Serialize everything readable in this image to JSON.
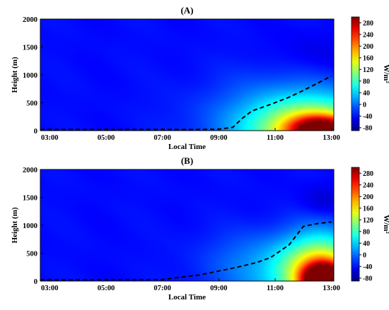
{
  "chart_data": [
    {
      "type": "heatmap",
      "title": "(A)",
      "xlabel": "Local Time",
      "ylabel": "Height (m)",
      "x_ticks": [
        "03:00",
        "05:00",
        "07:00",
        "09:00",
        "11:00",
        "13:00"
      ],
      "x_range": [
        "02:40",
        "13:05"
      ],
      "y_ticks": [
        "0",
        "500",
        "1000",
        "1500",
        "2000"
      ],
      "ylim": [
        0,
        2000
      ],
      "colorbar": {
        "label": "W/m²",
        "ticks": [
          "-80",
          "-40",
          "0",
          "40",
          "80",
          "120",
          "160",
          "200",
          "240",
          "280"
        ],
        "range": [
          -90,
          300
        ]
      },
      "boundary_layer_height": {
        "x": [
          "02:40",
          "08:00",
          "09:00",
          "09:30",
          "09:50",
          "10:10",
          "10:50",
          "11:30",
          "12:00",
          "12:30",
          "13:00"
        ],
        "y": [
          20,
          20,
          25,
          60,
          220,
          350,
          470,
          600,
          720,
          850,
          980
        ]
      },
      "field_features": [
        {
          "x": "12:40",
          "y": 0,
          "value": 200,
          "spread_x_hours": 0.8,
          "spread_y_m": 180
        },
        {
          "x": "12:20",
          "y": 0,
          "value": 100,
          "spread_x_hours": 1.5,
          "spread_y_m": 380
        },
        {
          "x": "11:50",
          "y": 150,
          "value": 35,
          "spread_x_hours": 2.2,
          "spread_y_m": 500
        },
        {
          "x": "12:30",
          "y": 1300,
          "value": -55,
          "spread_x_hours": 1.2,
          "spread_y_m": 300
        },
        {
          "x": "11:30",
          "y": 1000,
          "value": -30,
          "spread_x_hours": 1.5,
          "spread_y_m": 350
        }
      ]
    },
    {
      "type": "heatmap",
      "title": "(B)",
      "xlabel": "Local Time",
      "ylabel": "Height (m)",
      "x_ticks": [
        "03:00",
        "05:00",
        "07:00",
        "09:00",
        "11:00",
        "13:00"
      ],
      "x_range": [
        "02:40",
        "13:05"
      ],
      "y_ticks": [
        "0",
        "500",
        "1000",
        "1500",
        "2000"
      ],
      "ylim": [
        0,
        2000
      ],
      "colorbar": {
        "label": "W/m²",
        "ticks": [
          "-80",
          "-40",
          "0",
          "40",
          "80",
          "120",
          "160",
          "200",
          "240",
          "280"
        ],
        "range": [
          -90,
          300
        ]
      },
      "boundary_layer_height": {
        "x": [
          "02:40",
          "07:00",
          "07:30",
          "08:20",
          "09:00",
          "09:40",
          "10:20",
          "10:50",
          "11:30",
          "12:00",
          "12:30",
          "13:00"
        ],
        "y": [
          20,
          25,
          60,
          110,
          180,
          250,
          330,
          420,
          650,
          980,
          1030,
          1060
        ]
      },
      "field_features": [
        {
          "x": "12:45",
          "y": 0,
          "value": 280,
          "spread_x_hours": 0.5,
          "spread_y_m": 200
        },
        {
          "x": "12:40",
          "y": 100,
          "value": 140,
          "spread_x_hours": 0.9,
          "spread_y_m": 450
        },
        {
          "x": "11:50",
          "y": 200,
          "value": 45,
          "spread_x_hours": 1.8,
          "spread_y_m": 500
        },
        {
          "x": "10:30",
          "y": 850,
          "value": -45,
          "spread_x_hours": 1.1,
          "spread_y_m": 400
        },
        {
          "x": "12:45",
          "y": 1450,
          "value": -60,
          "spread_x_hours": 0.6,
          "spread_y_m": 200
        },
        {
          "x": "09:30",
          "y": 500,
          "value": -30,
          "spread_x_hours": 1.0,
          "spread_y_m": 350
        }
      ]
    }
  ]
}
